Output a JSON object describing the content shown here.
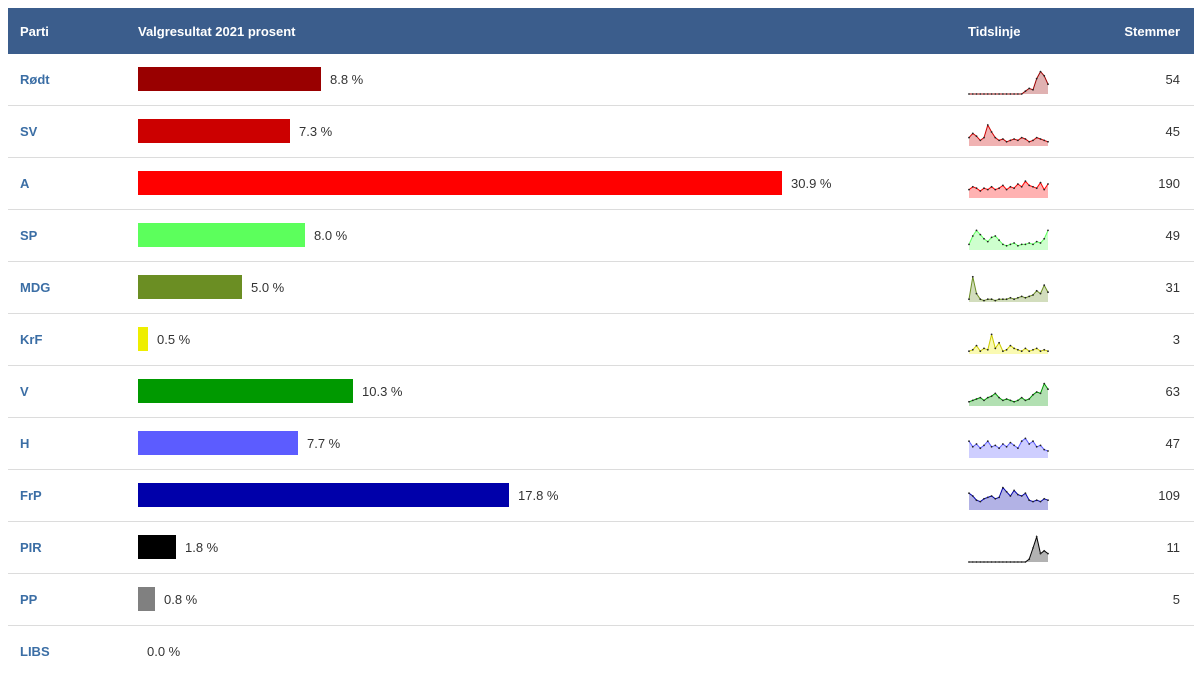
{
  "header": {
    "parti": "Parti",
    "valgresultat": "Valgresultat 2021 prosent",
    "tidslinje": "Tidslinje",
    "stemmer": "Stemmer"
  },
  "parties": [
    {
      "name": "Rødt",
      "percent": 8.8,
      "percent_label": "8.8 %",
      "votes": "54",
      "color": "#990000",
      "timeline": [
        0,
        0,
        0,
        0,
        0,
        0,
        0,
        0,
        0,
        0,
        0,
        0,
        0,
        0,
        0,
        0.1,
        0.2,
        0.15,
        0.55,
        0.8,
        0.65,
        0.35
      ]
    },
    {
      "name": "SV",
      "percent": 7.3,
      "percent_label": "7.3 %",
      "votes": "45",
      "color": "#cc0000",
      "timeline": [
        0.3,
        0.45,
        0.35,
        0.2,
        0.3,
        0.75,
        0.5,
        0.3,
        0.2,
        0.25,
        0.15,
        0.2,
        0.25,
        0.2,
        0.3,
        0.25,
        0.15,
        0.2,
        0.3,
        0.25,
        0.2,
        0.15
      ]
    },
    {
      "name": "A",
      "percent": 30.9,
      "percent_label": "30.9 %",
      "votes": "190",
      "color": "#ff0000",
      "timeline": [
        0.3,
        0.4,
        0.35,
        0.25,
        0.35,
        0.3,
        0.4,
        0.3,
        0.35,
        0.45,
        0.3,
        0.4,
        0.35,
        0.5,
        0.4,
        0.6,
        0.45,
        0.4,
        0.35,
        0.55,
        0.3,
        0.5
      ]
    },
    {
      "name": "SP",
      "percent": 8.0,
      "percent_label": "8.0 %",
      "votes": "49",
      "color": "#5cff5c",
      "timeline": [
        0.2,
        0.5,
        0.7,
        0.55,
        0.4,
        0.3,
        0.45,
        0.5,
        0.35,
        0.2,
        0.15,
        0.2,
        0.25,
        0.15,
        0.2,
        0.2,
        0.25,
        0.2,
        0.3,
        0.25,
        0.4,
        0.7
      ]
    },
    {
      "name": "MDG",
      "percent": 5.0,
      "percent_label": "5.0 %",
      "votes": "31",
      "color": "#6b8e23",
      "timeline": [
        0.1,
        0.9,
        0.3,
        0.1,
        0.05,
        0.1,
        0.1,
        0.05,
        0.1,
        0.1,
        0.1,
        0.15,
        0.1,
        0.15,
        0.2,
        0.15,
        0.2,
        0.25,
        0.4,
        0.3,
        0.6,
        0.35
      ]
    },
    {
      "name": "KrF",
      "percent": 0.5,
      "percent_label": "0.5 %",
      "votes": "3",
      "color": "#eeee00",
      "timeline": [
        0.1,
        0.15,
        0.3,
        0.1,
        0.2,
        0.15,
        0.7,
        0.2,
        0.4,
        0.1,
        0.15,
        0.3,
        0.2,
        0.15,
        0.1,
        0.2,
        0.1,
        0.15,
        0.2,
        0.1,
        0.15,
        0.1
      ]
    },
    {
      "name": "V",
      "percent": 10.3,
      "percent_label": "10.3 %",
      "votes": "63",
      "color": "#009900",
      "timeline": [
        0.15,
        0.2,
        0.25,
        0.3,
        0.2,
        0.3,
        0.35,
        0.45,
        0.3,
        0.2,
        0.25,
        0.2,
        0.15,
        0.2,
        0.3,
        0.2,
        0.25,
        0.4,
        0.5,
        0.45,
        0.8,
        0.6
      ]
    },
    {
      "name": "H",
      "percent": 7.7,
      "percent_label": "7.7 %",
      "votes": "47",
      "color": "#5c5cff",
      "timeline": [
        0.6,
        0.4,
        0.5,
        0.35,
        0.45,
        0.6,
        0.4,
        0.45,
        0.35,
        0.5,
        0.4,
        0.55,
        0.45,
        0.35,
        0.6,
        0.7,
        0.5,
        0.6,
        0.4,
        0.45,
        0.3,
        0.25
      ]
    },
    {
      "name": "FrP",
      "percent": 17.8,
      "percent_label": "17.8 %",
      "votes": "109",
      "color": "#0000aa",
      "timeline": [
        0.6,
        0.5,
        0.35,
        0.3,
        0.4,
        0.45,
        0.5,
        0.4,
        0.45,
        0.8,
        0.65,
        0.5,
        0.7,
        0.55,
        0.5,
        0.6,
        0.35,
        0.3,
        0.35,
        0.3,
        0.4,
        0.35
      ]
    },
    {
      "name": "PIR",
      "percent": 1.8,
      "percent_label": "1.8 %",
      "votes": "11",
      "color": "#000000",
      "timeline": [
        0,
        0,
        0,
        0,
        0,
        0,
        0,
        0,
        0,
        0,
        0,
        0,
        0,
        0,
        0,
        0,
        0.1,
        0.5,
        0.9,
        0.3,
        0.4,
        0.3
      ]
    },
    {
      "name": "PP",
      "percent": 0.8,
      "percent_label": "0.8 %",
      "votes": "5",
      "color": "#808080",
      "timeline": []
    },
    {
      "name": "LIBS",
      "percent": 0.0,
      "percent_label": "0.0 %",
      "votes": "",
      "color": "#cccccc",
      "timeline": []
    }
  ]
}
